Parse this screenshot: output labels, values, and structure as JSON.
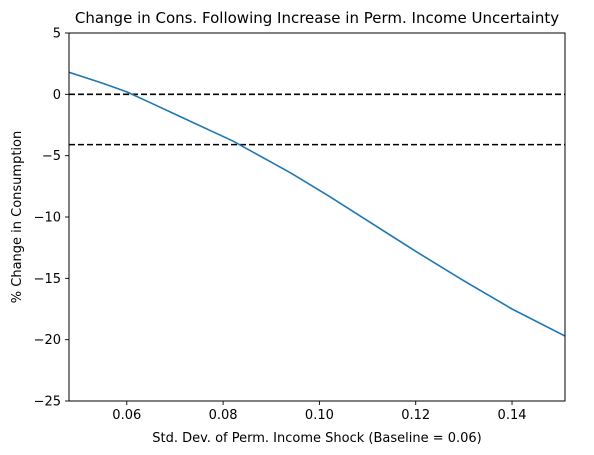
{
  "chart_data": {
    "type": "line",
    "title": "Change in Cons. Following Increase in Perm. Income Uncertainty",
    "xlabel": "Std. Dev. of Perm. Income Shock (Baseline = 0.06)",
    "ylabel": "% Change in Consumption",
    "xlim": [
      0.048,
      0.151
    ],
    "ylim": [
      -25,
      5
    ],
    "x_ticks": [
      0.06,
      0.08,
      0.1,
      0.12,
      0.14
    ],
    "x_tick_labels": [
      "0.06",
      "0.08",
      "0.10",
      "0.12",
      "0.14"
    ],
    "y_ticks": [
      5,
      0,
      -5,
      -10,
      -15,
      -20,
      -25
    ],
    "y_tick_labels": [
      "5",
      "0",
      "−5",
      "−10",
      "−15",
      "−20",
      "−25"
    ],
    "grid": false,
    "line_color": "#1f77b4",
    "reference_line_color": "#000000",
    "series": [
      {
        "x": [
          0.048,
          0.055,
          0.06,
          0.065,
          0.071,
          0.082,
          0.094,
          0.102,
          0.11,
          0.12,
          0.13,
          0.14,
          0.151
        ],
        "y": [
          1.8,
          0.9,
          0.2,
          -0.7,
          -1.8,
          -3.8,
          -6.4,
          -8.3,
          -10.3,
          -12.8,
          -15.2,
          -17.5,
          -19.7
        ]
      }
    ],
    "reference_lines": [
      {
        "axis": "y",
        "value": 0,
        "style": "dashed"
      },
      {
        "axis": "y",
        "value": -4.1,
        "style": "dashed"
      }
    ]
  }
}
